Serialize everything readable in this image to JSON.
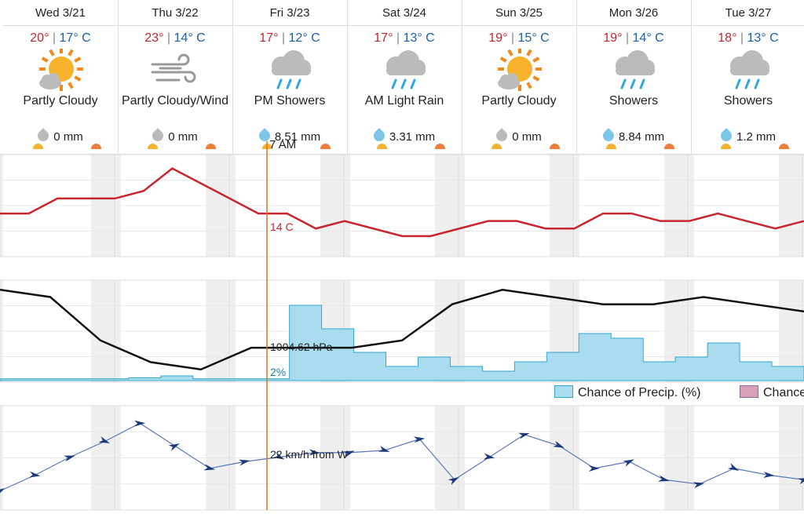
{
  "days": [
    {
      "name": "Wed 3/21",
      "hi": "20°",
      "lo": "17° C",
      "cond": "Partly Cloudy",
      "icon": "partly-cloudy-icon",
      "precip": "0 mm",
      "drop": "gray"
    },
    {
      "name": "Thu 3/22",
      "hi": "23°",
      "lo": "14° C",
      "cond": "Partly Cloudy/Wind",
      "icon": "wind-icon",
      "precip": "0 mm",
      "drop": "gray"
    },
    {
      "name": "Fri 3/23",
      "hi": "17°",
      "lo": "12° C",
      "cond": "PM Showers",
      "icon": "rain-cloud-icon",
      "precip": "8.51 mm",
      "drop": "blue"
    },
    {
      "name": "Sat 3/24",
      "hi": "17°",
      "lo": "13° C",
      "cond": "AM Light Rain",
      "icon": "rain-cloud-icon",
      "precip": "3.31 mm",
      "drop": "blue"
    },
    {
      "name": "Sun 3/25",
      "hi": "19°",
      "lo": "15° C",
      "cond": "Partly Cloudy",
      "icon": "partly-cloudy-icon",
      "precip": "0 mm",
      "drop": "gray"
    },
    {
      "name": "Mon 3/26",
      "hi": "19°",
      "lo": "14° C",
      "cond": "Showers",
      "icon": "rain-cloud-icon",
      "precip": "8.84 mm",
      "drop": "blue"
    },
    {
      "name": "Tue 3/27",
      "hi": "18°",
      "lo": "13° C",
      "cond": "Showers",
      "icon": "rain-cloud-icon",
      "precip": "1.2 mm",
      "drop": "blue"
    }
  ],
  "cursor": {
    "time": "7 AM",
    "temp": "14 C",
    "pressure": "1004.62 hPa",
    "precip_chance": "2%",
    "wind": "22 km/h from W"
  },
  "legend": {
    "precip_chance": "Chance of Precip. (%)",
    "other": "Chance"
  },
  "colors": {
    "temp": "#c8262e",
    "pressure": "#111111",
    "precip_fill": "#a8dcee",
    "precip_stroke": "#35a6c9",
    "wind": "#1c3a78",
    "cursor": "#e0701f",
    "hi": "#c8262e",
    "lo": "#1b5faa"
  },
  "chart_data": [
    {
      "type": "line",
      "name": "temperature",
      "unit": "C",
      "x_hours": [
        0,
        6,
        12,
        18,
        24,
        30,
        36,
        42,
        48,
        54,
        60,
        66,
        72,
        78,
        84,
        90,
        96,
        102,
        108,
        114,
        120,
        126,
        132,
        138,
        144,
        150,
        156,
        162,
        168
      ],
      "values": [
        17,
        17,
        19,
        19,
        19,
        20,
        23,
        21,
        19,
        17,
        17,
        15,
        16,
        15,
        14,
        14,
        15,
        16,
        16,
        15,
        15,
        17,
        17,
        16,
        16,
        17,
        16,
        15,
        16
      ]
    },
    {
      "type": "line",
      "name": "pressure",
      "unit": "hPa",
      "values": [
        1012,
        1011,
        1005,
        1002,
        1001,
        1004,
        1004,
        1004,
        1005,
        1010,
        1012,
        1011,
        1010,
        1010,
        1011,
        1010,
        1009
      ]
    },
    {
      "type": "area",
      "name": "Chance of Precip. (%)",
      "values": [
        2,
        2,
        2,
        2,
        3,
        5,
        2,
        2,
        2,
        80,
        55,
        30,
        15,
        25,
        15,
        10,
        20,
        30,
        50,
        45,
        20,
        25,
        40,
        20,
        15,
        10
      ]
    },
    {
      "type": "line",
      "name": "wind",
      "unit": "km/h",
      "values": [
        5,
        12,
        20,
        27,
        35,
        25,
        15,
        18,
        20,
        22,
        22,
        23,
        28,
        10,
        20,
        30,
        25,
        15,
        18,
        10,
        8,
        15,
        12,
        10
      ]
    }
  ]
}
